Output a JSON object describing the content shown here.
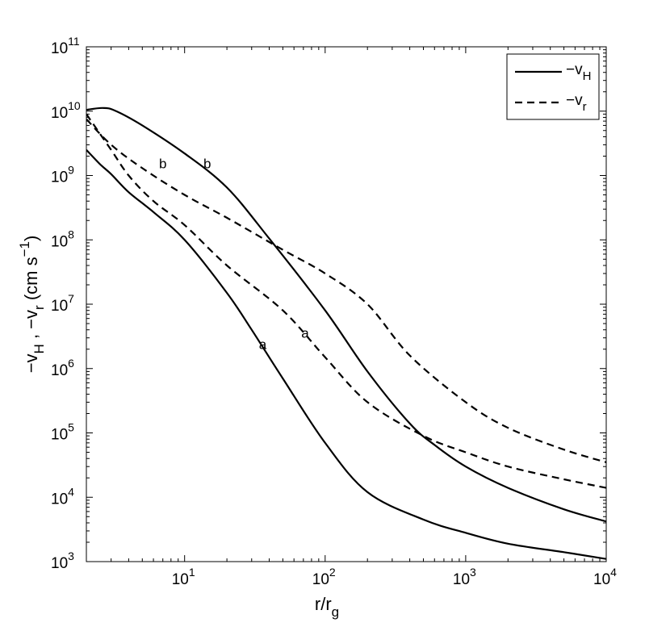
{
  "chart_data": {
    "type": "line",
    "title": "",
    "xlabel": {
      "base": "r/r",
      "sub": "g"
    },
    "ylabel": {
      "parts": [
        "−v",
        "H",
        " , −v",
        "r",
        " (cm s",
        "−1",
        ")"
      ]
    },
    "x_scale": "log",
    "y_scale": "log",
    "xlim": [
      2,
      10000
    ],
    "ylim": [
      1000,
      100000000000
    ],
    "grid": false,
    "x_ticks": [
      {
        "value": 10,
        "base": "10",
        "exp": "1"
      },
      {
        "value": 100,
        "base": "10",
        "exp": "2"
      },
      {
        "value": 1000,
        "base": "10",
        "exp": "3"
      },
      {
        "value": 10000,
        "base": "10",
        "exp": "4"
      }
    ],
    "y_ticks": [
      {
        "value": 1000,
        "base": "10",
        "exp": "3"
      },
      {
        "value": 10000,
        "base": "10",
        "exp": "4"
      },
      {
        "value": 100000,
        "base": "10",
        "exp": "5"
      },
      {
        "value": 1000000,
        "base": "10",
        "exp": "6"
      },
      {
        "value": 10000000,
        "base": "10",
        "exp": "7"
      },
      {
        "value": 100000000,
        "base": "10",
        "exp": "8"
      },
      {
        "value": 1000000000,
        "base": "10",
        "exp": "9"
      },
      {
        "value": 10000000000,
        "base": "10",
        "exp": "10"
      },
      {
        "value": 100000000000,
        "base": "10",
        "exp": "11"
      }
    ],
    "legend": {
      "position": "top-right",
      "entries": [
        {
          "base": "−v",
          "sub": "H",
          "style": "solid"
        },
        {
          "base": "−v",
          "sub": "r",
          "style": "dashed"
        }
      ]
    },
    "series": [
      {
        "style": "solid",
        "label": "b",
        "label_at": {
          "x": 14.5,
          "y": 1300000000
        },
        "points": [
          [
            2,
            10500000000.0
          ],
          [
            2.6,
            11200000000.0
          ],
          [
            3.2,
            10200000000.0
          ],
          [
            5,
            6000000000.0
          ],
          [
            10,
            2200000000.0
          ],
          [
            20,
            650000000.0
          ],
          [
            40,
            105000000.0
          ],
          [
            100,
            8000000.0
          ],
          [
            200,
            900000.0
          ],
          [
            400,
            140000.0
          ],
          [
            600,
            65000.0
          ],
          [
            1000,
            30000.0
          ],
          [
            2000,
            14000.0
          ],
          [
            5000,
            6500.0
          ],
          [
            10000,
            4200.0
          ]
        ]
      },
      {
        "style": "solid",
        "label": "a",
        "label_at": {
          "x": 36,
          "y": 2000000
        },
        "points": [
          [
            2,
            2500000000.0
          ],
          [
            2.5,
            1500000000.0
          ],
          [
            3,
            1050000000.0
          ],
          [
            4,
            550000000.0
          ],
          [
            6,
            270000000.0
          ],
          [
            10,
            100000000.0
          ],
          [
            20,
            15000000.0
          ],
          [
            30,
            4000000.0
          ],
          [
            50,
            700000.0
          ],
          [
            100,
            70000.0
          ],
          [
            200,
            12000.0
          ],
          [
            500,
            4500.0
          ],
          [
            1000,
            2800.0
          ],
          [
            2000,
            1900.0
          ],
          [
            5000,
            1400.0
          ],
          [
            10000,
            1100.0
          ]
        ]
      },
      {
        "style": "dashed",
        "label": "b",
        "label_at": {
          "x": 7,
          "y": 1300000000
        },
        "points": [
          [
            2,
            7500000000.0
          ],
          [
            3,
            3000000000.0
          ],
          [
            5,
            1300000000.0
          ],
          [
            10,
            500000000.0
          ],
          [
            20,
            220000000.0
          ],
          [
            50,
            70000000.0
          ],
          [
            100,
            30000000.0
          ],
          [
            200,
            10000000.0
          ],
          [
            400,
            1600000.0
          ],
          [
            1000,
            300000.0
          ],
          [
            2000,
            120000.0
          ],
          [
            5000,
            55000.0
          ],
          [
            10000,
            35000.0
          ]
        ]
      },
      {
        "style": "dashed",
        "label": "a",
        "label_at": {
          "x": 72,
          "y": 3000000
        },
        "points": [
          [
            2,
            9000000000.0
          ],
          [
            3,
            2500000000.0
          ],
          [
            4,
            1000000000.0
          ],
          [
            6,
            400000000.0
          ],
          [
            10,
            170000000.0
          ],
          [
            20,
            40000000.0
          ],
          [
            50,
            8000000.0
          ],
          [
            100,
            1500000.0
          ],
          [
            200,
            300000.0
          ],
          [
            500,
            90000.0
          ],
          [
            1000,
            50000.0
          ],
          [
            2000,
            30000.0
          ],
          [
            5000,
            19000.0
          ],
          [
            10000,
            14000.0
          ]
        ]
      }
    ]
  }
}
